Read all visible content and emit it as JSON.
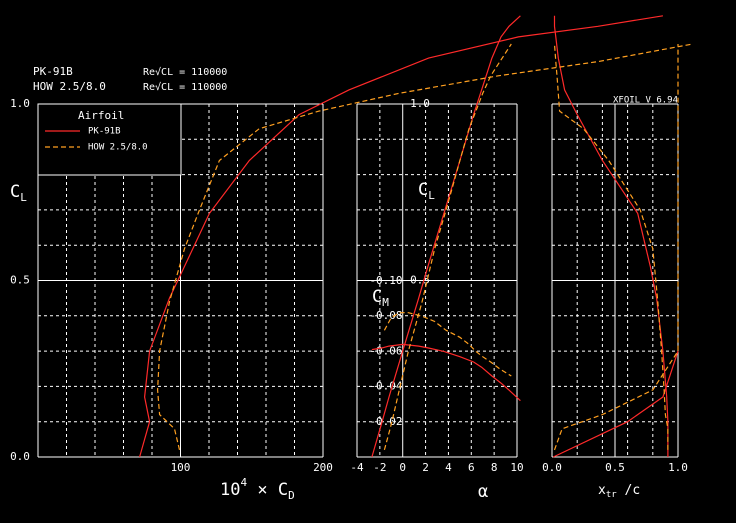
{
  "chart_data": {
    "type": "xfoil-polar",
    "version": "XFOIL V 6.94",
    "legend_title": "Airfoil",
    "cl_label": {
      "main": "C",
      "sub": "L"
    },
    "cd_label": {
      "pre": "10",
      "exp": "4",
      "main": " × C",
      "sub": "D"
    },
    "alpha_label": "α",
    "xtr_label": {
      "main": "x",
      "sub": "tr",
      "post": " /c"
    },
    "cm_label": {
      "main": "C",
      "sub": "M"
    },
    "ylim": [
      0,
      1
    ],
    "yticks": [
      {
        "value": 0,
        "label": "0.0"
      },
      0.5,
      {
        "value": 1,
        "label": "1.0"
      }
    ],
    "ygrid": [
      0.1,
      0.2,
      0.3,
      0.4,
      0.6,
      0.7,
      0.8,
      0.9
    ],
    "alpha_cl_ticks": [
      0.5,
      {
        "value": 1,
        "label": "1.0"
      }
    ],
    "cd_xlim": [
      0,
      200
    ],
    "cd_xticks": [
      100,
      200
    ],
    "cd_xgrid": [
      20,
      40,
      60,
      80,
      120,
      140,
      160,
      180
    ],
    "alpha_xlim": [
      -4,
      10
    ],
    "alpha_xticks": [
      -4,
      -2,
      0,
      2,
      4,
      6,
      8,
      10
    ],
    "cm_lim": [
      0,
      -0.1
    ],
    "cm_ticks": [
      -0.02,
      -0.04,
      -0.06,
      -0.08,
      {
        "value": -0.1,
        "label": "-0.10"
      }
    ],
    "xtr_xlim": [
      0,
      1
    ],
    "xtr_xticks": [
      {
        "value": 0,
        "label": "0.0"
      },
      0.5,
      {
        "value": 1,
        "label": "1.0"
      }
    ],
    "xtr_xgrid": [
      0.2,
      0.4,
      0.6,
      0.8
    ],
    "polars": [
      {
        "name": "PK-91B",
        "re_label": "Re√CL = 110000",
        "color": "#ff2a2a",
        "dashed": false,
        "cl": [
          0,
          0.1,
          0.17,
          0.3,
          0.45,
          0.54,
          0.69,
          0.84,
          0.97,
          1.04,
          1.13,
          1.19,
          1.22,
          1.25
        ],
        "cd": [
          71.3,
          78.3,
          74.8,
          78.3,
          92.3,
          102.8,
          120.3,
          148.3,
          183.2,
          218.2,
          274.1,
          337.1,
          393,
          438.5
        ],
        "alpha": [
          -2.7,
          -1.8,
          -1.2,
          0,
          1.4,
          2.2,
          3.6,
          5.0,
          6.2,
          6.9,
          7.8,
          8.6,
          9.3,
          10.3
        ],
        "cm": [
          -0.061,
          -0.062,
          -0.063,
          -0.064,
          -0.063,
          -0.062,
          -0.06,
          -0.057,
          -0.054,
          -0.051,
          -0.046,
          -0.042,
          -0.038,
          -0.032
        ],
        "xtr_top": [
          0.92,
          0.92,
          0.91,
          0.88,
          0.83,
          0.78,
          0.68,
          0.4,
          0.2,
          0.1,
          0.05,
          0.03,
          0.02,
          0.02
        ],
        "xtr_bot": [
          0.01,
          0.6,
          0.88,
          1.0,
          null,
          null,
          null,
          null,
          null,
          null,
          null,
          null,
          null,
          null
        ]
      },
      {
        "name": "HOW 2.5/8.0",
        "re_label": "Re√CL = 110000",
        "color": "#ffa020",
        "dashed": true,
        "cl": [
          0.02,
          0.08,
          0.12,
          0.19,
          0.3,
          0.44,
          0.59,
          0.7,
          0.84,
          0.93,
          0.98,
          1.03,
          1.08,
          1.12,
          1.17
        ],
        "cd": [
          99.3,
          95.8,
          85.3,
          83.9,
          85.3,
          92.3,
          102.8,
          113.3,
          127.3,
          155.2,
          197.2,
          253.1,
          323,
          393,
          459.4
        ],
        "alpha": [
          -1.6,
          -1.1,
          -0.8,
          -0.3,
          0.5,
          1.7,
          2.8,
          3.8,
          5.0,
          5.8,
          6.4,
          7.0,
          7.7,
          8.5,
          9.5
        ],
        "cm": [
          -0.072,
          -0.078,
          -0.08,
          -0.082,
          -0.082,
          -0.08,
          -0.077,
          -0.072,
          -0.068,
          -0.064,
          -0.06,
          -0.057,
          -0.054,
          -0.05,
          -0.046
        ],
        "xtr_top": [
          0.92,
          0.92,
          0.9,
          0.89,
          0.87,
          0.84,
          0.8,
          0.7,
          0.45,
          0.25,
          0.06,
          0.05,
          0.04,
          0.03,
          0.02
        ],
        "xtr_bot": [
          0.02,
          0.08,
          0.4,
          0.8,
          1.0,
          1.0,
          1.0,
          1.0,
          1.0,
          1.0,
          1.0,
          1.0,
          1.0,
          1.0,
          1.0
        ]
      }
    ]
  }
}
